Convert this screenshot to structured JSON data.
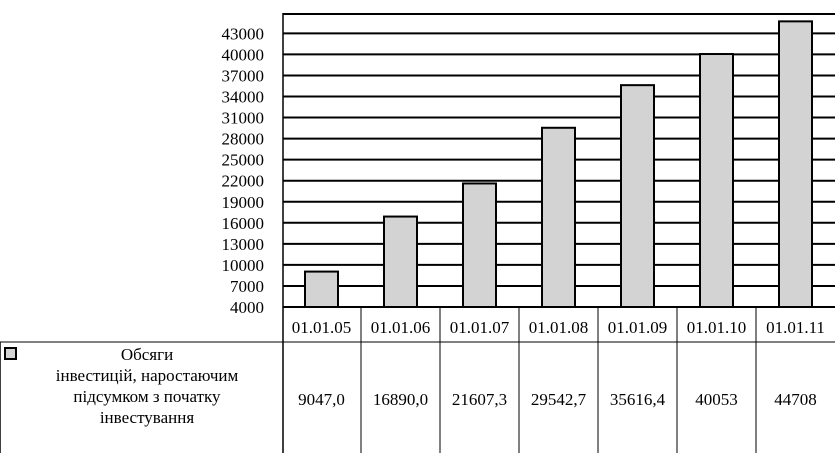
{
  "chart_data": {
    "type": "bar",
    "categories": [
      "01.01.05",
      "01.01.06",
      "01.01.07",
      "01.01.08",
      "01.01.09",
      "01.01.10",
      "01.01.11"
    ],
    "series": [
      {
        "name": "Обсяги\nінвестицій, наростаючим\nпідсумком з початку\nінвестування",
        "values": [
          9047.0,
          16890.0,
          21607.3,
          29542.7,
          35616.4,
          40053,
          44708
        ],
        "value_labels": [
          "9047,0",
          "16890,0",
          "21607,3",
          "29542,7",
          "35616,4",
          "40053",
          "44708"
        ]
      }
    ],
    "y_ticks": [
      4000,
      7000,
      10000,
      13000,
      16000,
      19000,
      22000,
      25000,
      28000,
      31000,
      34000,
      37000,
      40000,
      43000
    ],
    "ylim": [
      4000,
      44708
    ],
    "grid": true,
    "legend": "data-table",
    "colors": {
      "bar_fill": "#d3d3d3",
      "bar_stroke": "#000000",
      "grid": "#000000"
    }
  }
}
